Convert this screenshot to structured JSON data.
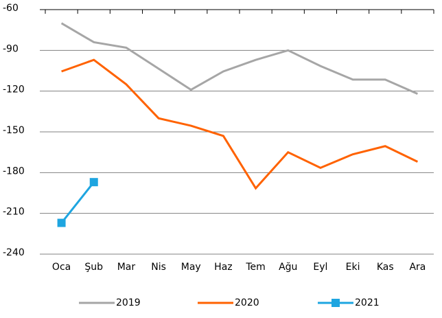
{
  "chart_data": {
    "type": "line",
    "categories": [
      "Oca",
      "Şub",
      "Mar",
      "Nis",
      "May",
      "Haz",
      "Tem",
      "Ağu",
      "Eyl",
      "Eki",
      "Kas",
      "Ara"
    ],
    "series": [
      {
        "name": "2019",
        "color": "#a6a6a6",
        "values": [
          -70,
          -84,
          -88,
          -103.5,
          -119,
          -105.5,
          -97,
          -90,
          -101.5,
          -111.5,
          -111.5,
          -122
        ]
      },
      {
        "name": "2020",
        "color": "#ff6200",
        "values": [
          -105.5,
          -97,
          -115,
          -140,
          -145.5,
          -153,
          -191.5,
          -165,
          -176.5,
          -166.5,
          -160.5,
          -172
        ]
      },
      {
        "name": "2021",
        "color": "#1ea5e0",
        "marker": "square",
        "values": [
          -217,
          -187,
          null,
          null,
          null,
          null,
          null,
          null,
          null,
          null,
          null,
          null
        ]
      }
    ],
    "ylim": [
      -240,
      -60
    ],
    "yticks": [
      -60,
      -90,
      -120,
      -150,
      -180,
      -210,
      -240
    ],
    "grid": true,
    "legend": "bottom"
  }
}
